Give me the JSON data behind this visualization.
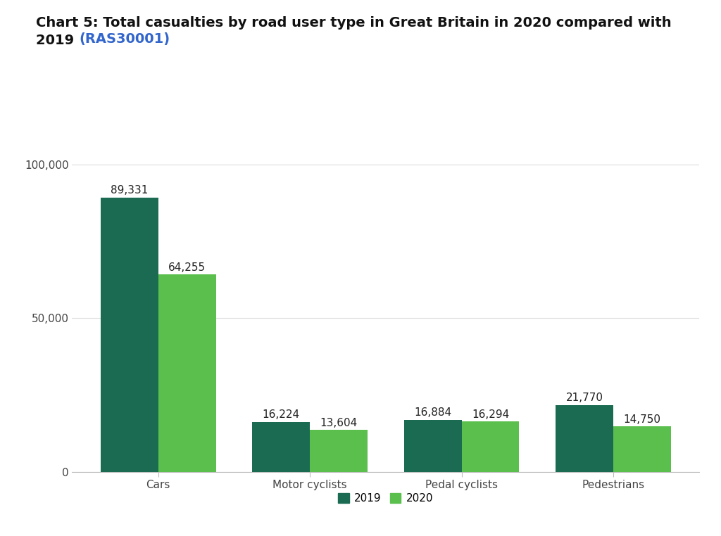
{
  "title_main": "Chart 5: Total casualties by road user type in Great Britain in 2020 compared with\n2019 ",
  "title_link": "(RAS30001)",
  "categories": [
    "Cars",
    "Motor cyclists",
    "Pedal cyclists",
    "Pedestrians"
  ],
  "values_2019": [
    89331,
    16224,
    16884,
    21770
  ],
  "values_2020": [
    64255,
    13604,
    16294,
    14750
  ],
  "labels_2019": [
    "89,331",
    "16,224",
    "16,884",
    "21,770"
  ],
  "labels_2020": [
    "64,255",
    "13,604",
    "16,294",
    "14,750"
  ],
  "color_2019": "#1a6b52",
  "color_2020": "#5bbf4e",
  "ylim": [
    0,
    110000
  ],
  "yticks": [
    0,
    50000,
    100000
  ],
  "ytick_labels": [
    "0",
    "50,000",
    "100,000"
  ],
  "background_color": "#ffffff",
  "bar_width": 0.38,
  "legend_2019": "2019",
  "legend_2020": "2020",
  "title_fontsize": 14,
  "tick_fontsize": 11,
  "label_fontsize": 11
}
